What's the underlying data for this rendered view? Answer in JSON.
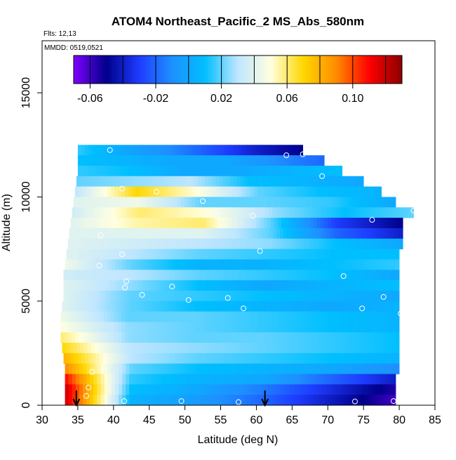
{
  "chart_data": {
    "type": "heatmap",
    "title": "ATOM4 Northeast_Pacific_2 MS_Abs_580nm",
    "flights_label": "Flts: 12,13",
    "dates_label": "MMDD: 0519,0521",
    "xlabel": "Latitude (deg N)",
    "ylabel": "Altitude (m)",
    "xlim": [
      30,
      85
    ],
    "ylim": [
      0,
      17500
    ],
    "x_ticks": [
      30,
      35,
      40,
      45,
      50,
      55,
      60,
      65,
      70,
      75,
      80,
      85
    ],
    "y_ticks": [
      0,
      5000,
      10000,
      15000
    ],
    "colorbar": {
      "min": -0.07,
      "max": 0.13,
      "tick_values": [
        -0.06,
        -0.02,
        0.02,
        0.06,
        0.1
      ],
      "tick_labels": [
        "-0.06",
        "-0.02",
        "0.02",
        "0.06",
        "0.10"
      ],
      "colors": [
        "#7f00ff",
        "#00008b",
        "#1e3cff",
        "#1e90ff",
        "#00bfff",
        "#bfe6ff",
        "#ffffe0",
        "#ffd700",
        "#ff8c00",
        "#ff0000",
        "#8b0000"
      ]
    },
    "arrow_latitudes": [
      34.8,
      61.2
    ],
    "data_rows": [
      {
        "alt": 12250,
        "lat": [
          35,
          66.5
        ],
        "values": [
          0.015,
          0.0,
          -0.01,
          -0.025,
          -0.04,
          -0.05
        ]
      },
      {
        "alt": 11750,
        "lat": [
          35,
          69.5
        ],
        "values": [
          0.01,
          0.005,
          0.0,
          0.0,
          -0.01,
          -0.02
        ]
      },
      {
        "alt": 11250,
        "lat": [
          35,
          72
        ],
        "values": [
          0.015,
          0.01,
          0.0,
          0.0,
          0.005,
          0.01
        ]
      },
      {
        "alt": 10750,
        "lat": [
          34.8,
          75
        ],
        "values": [
          0.02,
          0.025,
          0.03,
          0.01,
          0.005,
          0.0
        ]
      },
      {
        "alt": 10250,
        "lat": [
          34.6,
          77.5
        ],
        "values": [
          0.03,
          0.07,
          0.05,
          0.02,
          0.01,
          0.005
        ]
      },
      {
        "alt": 9750,
        "lat": [
          34.4,
          79.5
        ],
        "values": [
          0.04,
          0.045,
          0.02,
          0.02,
          0.015,
          0.0
        ]
      },
      {
        "alt": 9250,
        "lat": [
          34.2,
          82
        ],
        "values": [
          0.035,
          0.06,
          0.05,
          0.025,
          0.01,
          0.02
        ]
      },
      {
        "alt": 8750,
        "lat": [
          34.0,
          80.5
        ],
        "values": [
          0.04,
          0.055,
          0.06,
          0.02,
          -0.03,
          -0.05
        ]
      },
      {
        "alt": 8250,
        "lat": [
          33.8,
          80.5
        ],
        "values": [
          0.04,
          0.04,
          0.04,
          0.02,
          -0.02,
          -0.04
        ]
      },
      {
        "alt": 7750,
        "lat": [
          33.6,
          80.5
        ],
        "values": [
          0.04,
          0.035,
          0.03,
          0.025,
          0.01,
          0.0
        ]
      },
      {
        "alt": 7250,
        "lat": [
          33.4,
          80.0
        ],
        "values": [
          0.04,
          0.03,
          0.02,
          0.015,
          0.01,
          0.01
        ]
      },
      {
        "alt": 6750,
        "lat": [
          33.2,
          80.0
        ],
        "values": [
          0.045,
          0.02,
          0.005,
          0.005,
          0.01,
          0.015
        ]
      },
      {
        "alt": 6250,
        "lat": [
          33.0,
          80.0
        ],
        "values": [
          0.035,
          0.03,
          0.02,
          0.015,
          0.01,
          0.0
        ]
      },
      {
        "alt": 5750,
        "lat": [
          33.0,
          80.0
        ],
        "values": [
          0.04,
          0.025,
          0.01,
          0.0,
          0.005,
          0.01
        ]
      },
      {
        "alt": 5250,
        "lat": [
          33.0,
          80.0
        ],
        "values": [
          0.04,
          0.02,
          0.015,
          0.01,
          0.005,
          0.0
        ]
      },
      {
        "alt": 4750,
        "lat": [
          32.8,
          80.0
        ],
        "values": [
          0.04,
          0.02,
          0.01,
          0.005,
          0.0,
          0.005
        ]
      },
      {
        "alt": 4250,
        "lat": [
          32.6,
          80.0
        ],
        "values": [
          0.045,
          0.02,
          0.02,
          0.015,
          0.01,
          0.005
        ]
      },
      {
        "alt": 3750,
        "lat": [
          32.6,
          80.0
        ],
        "values": [
          0.05,
          0.025,
          0.02,
          0.015,
          0.01,
          0.005
        ]
      },
      {
        "alt": 3250,
        "lat": [
          32.6,
          80.0
        ],
        "values": [
          0.06,
          0.025,
          0.02,
          0.02,
          0.015,
          0.01
        ]
      },
      {
        "alt": 2750,
        "lat": [
          32.8,
          80.0
        ],
        "values": [
          0.07,
          0.03,
          0.025,
          0.02,
          0.015,
          0.01
        ]
      },
      {
        "alt": 2250,
        "lat": [
          33.0,
          80.0
        ],
        "values": [
          0.08,
          0.03,
          0.02,
          0.015,
          0.01,
          0.005
        ]
      },
      {
        "alt": 1750,
        "lat": [
          33.2,
          80.0
        ],
        "values": [
          0.09,
          0.02,
          0.01,
          0.005,
          0.0,
          -0.01
        ]
      },
      {
        "alt": 1250,
        "lat": [
          33.2,
          79.5
        ],
        "values": [
          0.11,
          0.015,
          0.005,
          0.0,
          -0.02,
          -0.04
        ]
      },
      {
        "alt": 750,
        "lat": [
          33.2,
          79.5
        ],
        "values": [
          0.12,
          0.01,
          0.0,
          -0.015,
          -0.035,
          -0.055
        ]
      },
      {
        "alt": 250,
        "lat": [
          33.2,
          79.5
        ],
        "values": [
          0.12,
          0.005,
          -0.005,
          -0.02,
          -0.04,
          -0.06
        ]
      }
    ],
    "observations": [
      {
        "lat": 39.5,
        "alt": 12250
      },
      {
        "lat": 64.2,
        "alt": 12000
      },
      {
        "lat": 66.5,
        "alt": 12050
      },
      {
        "lat": 69.2,
        "alt": 11000
      },
      {
        "lat": 41.2,
        "alt": 10400
      },
      {
        "lat": 46.0,
        "alt": 10250
      },
      {
        "lat": 52.5,
        "alt": 9800
      },
      {
        "lat": 54.5,
        "alt": 9100
      },
      {
        "lat": 59.5,
        "alt": 9100
      },
      {
        "lat": 76.2,
        "alt": 8900
      },
      {
        "lat": 82.0,
        "alt": 9350
      },
      {
        "lat": 38.2,
        "alt": 8150
      },
      {
        "lat": 60.5,
        "alt": 7400
      },
      {
        "lat": 41.2,
        "alt": 7250
      },
      {
        "lat": 38.0,
        "alt": 6700
      },
      {
        "lat": 72.2,
        "alt": 6200
      },
      {
        "lat": 41.8,
        "alt": 5950
      },
      {
        "lat": 41.6,
        "alt": 5650
      },
      {
        "lat": 48.2,
        "alt": 5700
      },
      {
        "lat": 44.0,
        "alt": 5300
      },
      {
        "lat": 50.5,
        "alt": 5050
      },
      {
        "lat": 56.0,
        "alt": 5150
      },
      {
        "lat": 58.2,
        "alt": 4650
      },
      {
        "lat": 74.8,
        "alt": 4650
      },
      {
        "lat": 77.8,
        "alt": 5200
      },
      {
        "lat": 80.2,
        "alt": 4400
      },
      {
        "lat": 37.0,
        "alt": 1600
      },
      {
        "lat": 36.5,
        "alt": 850
      },
      {
        "lat": 36.2,
        "alt": 450
      },
      {
        "lat": 41.5,
        "alt": 200
      },
      {
        "lat": 49.5,
        "alt": 200
      },
      {
        "lat": 57.5,
        "alt": 150
      },
      {
        "lat": 73.8,
        "alt": 180
      },
      {
        "lat": 79.2,
        "alt": 200
      }
    ]
  }
}
